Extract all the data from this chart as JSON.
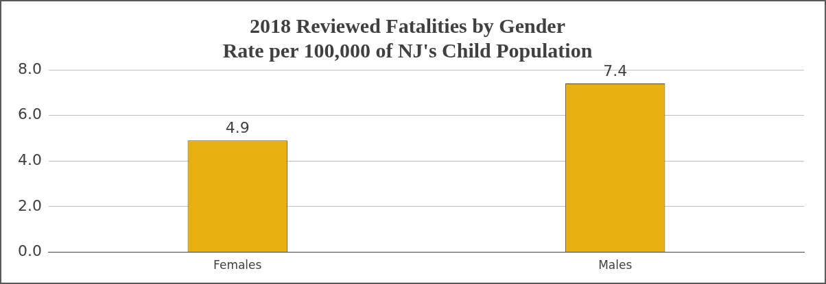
{
  "chart_data": {
    "type": "bar",
    "title": "2018 Reviewed Fatalities by Gender\nRate per 100,000 of NJ's Child Population",
    "categories": [
      "Females",
      "Males"
    ],
    "values": [
      4.9,
      7.4
    ],
    "color": "#e6b010",
    "ylim": [
      0,
      8
    ],
    "yticks": [
      {
        "value": 0,
        "label": "0.0"
      },
      {
        "value": 2,
        "label": "2.0"
      },
      {
        "value": 4,
        "label": "4.0"
      },
      {
        "value": 6,
        "label": "6.0"
      },
      {
        "value": 8,
        "label": "8.0"
      }
    ],
    "grid": "y",
    "data_labels": true
  }
}
